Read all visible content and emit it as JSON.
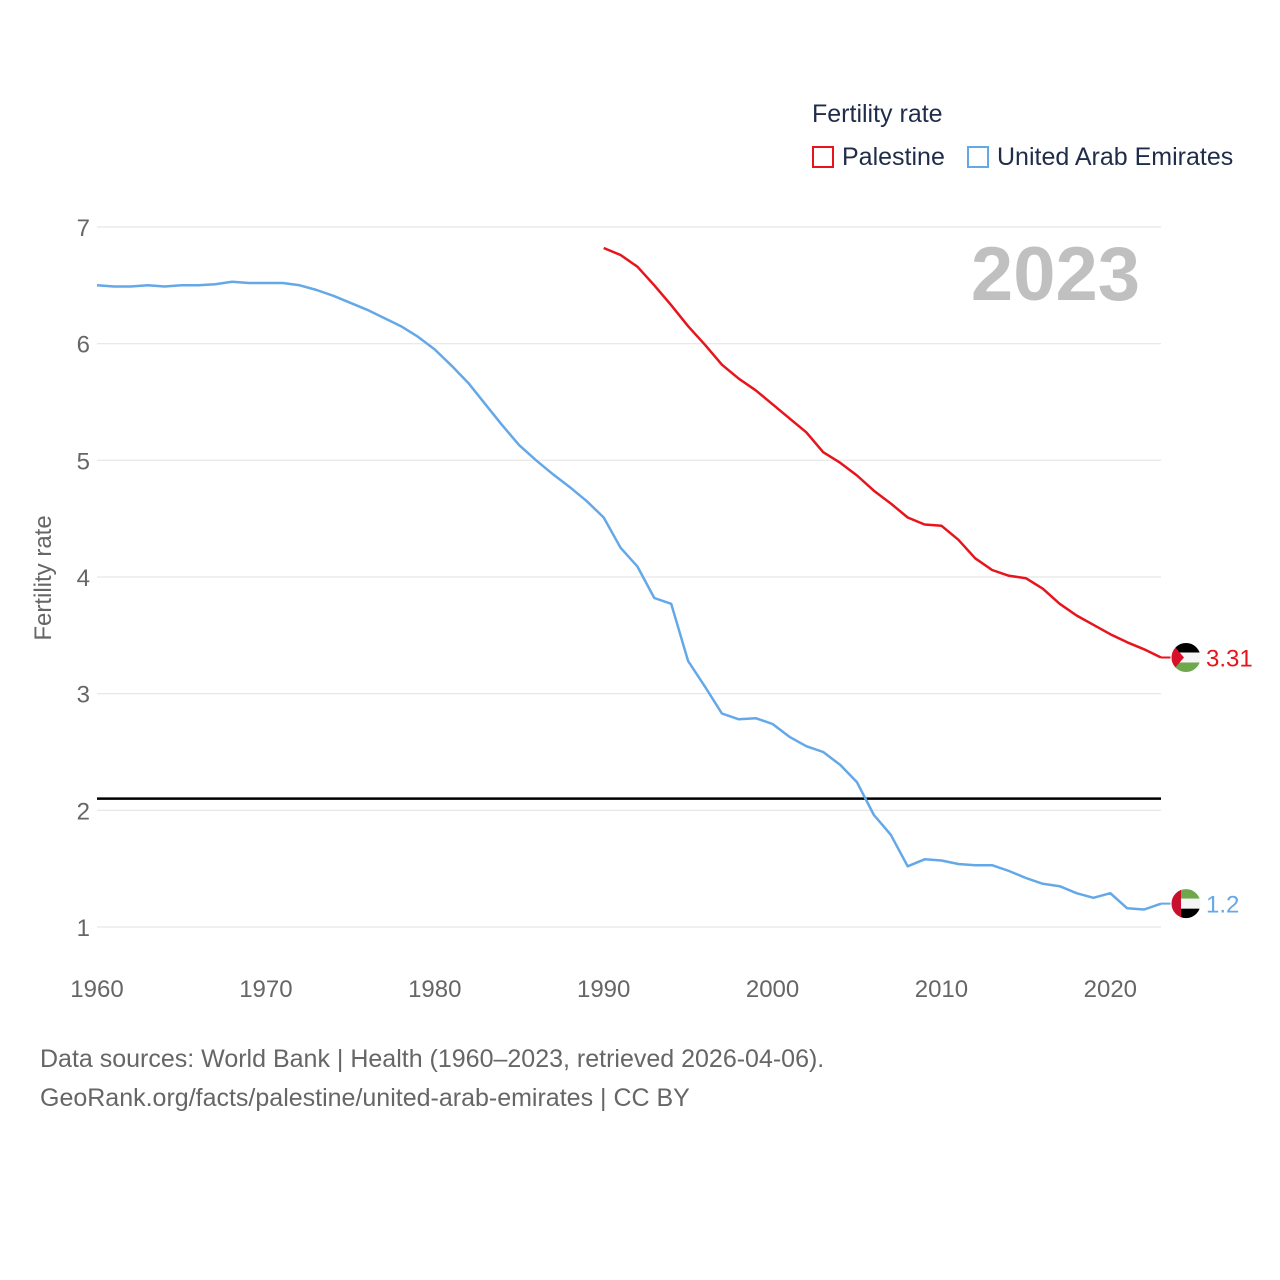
{
  "legend": {
    "title": "Fertility rate",
    "items": [
      {
        "label": "Palestine",
        "color": "#e8141c"
      },
      {
        "label": "United Arab Emirates",
        "color": "#64a8e8"
      }
    ]
  },
  "year_label": "2023",
  "source": {
    "line1": "Data sources: World Bank | Health (1960–2023, retrieved 2026-04-06).",
    "line2": "GeoRank.org/facts/palestine/united-arab-emirates | CC BY"
  },
  "chart_data": {
    "type": "line",
    "title": "Fertility rate",
    "xlabel": "",
    "ylabel": "Fertility rate",
    "xlim": [
      1960,
      2023
    ],
    "ylim": [
      0.85,
      7
    ],
    "x_ticks": [
      1960,
      1970,
      1980,
      1990,
      2000,
      2010,
      2020
    ],
    "y_ticks": [
      1,
      2,
      3,
      4,
      5,
      6,
      7
    ],
    "grid": true,
    "reference_line": {
      "y": 2.1,
      "color": "#000000"
    },
    "series": [
      {
        "name": "Palestine",
        "color": "#e8141c",
        "end_label": "3.31",
        "x": [
          1990,
          1991,
          1992,
          1993,
          1994,
          1995,
          1996,
          1997,
          1998,
          1999,
          2000,
          2001,
          2002,
          2003,
          2004,
          2005,
          2006,
          2007,
          2008,
          2009,
          2010,
          2011,
          2012,
          2013,
          2014,
          2015,
          2016,
          2017,
          2018,
          2019,
          2020,
          2021,
          2022,
          2023
        ],
        "values": [
          6.82,
          6.76,
          6.66,
          6.5,
          6.33,
          6.15,
          5.99,
          5.82,
          5.7,
          5.6,
          5.48,
          5.36,
          5.24,
          5.07,
          4.98,
          4.87,
          4.74,
          4.63,
          4.51,
          4.45,
          4.44,
          4.32,
          4.16,
          4.06,
          4.01,
          3.99,
          3.9,
          3.77,
          3.67,
          3.59,
          3.51,
          3.44,
          3.38,
          3.31
        ]
      },
      {
        "name": "United Arab Emirates",
        "color": "#64a8e8",
        "end_label": "1.2",
        "x": [
          1960,
          1961,
          1962,
          1963,
          1964,
          1965,
          1966,
          1967,
          1968,
          1969,
          1970,
          1971,
          1972,
          1973,
          1974,
          1975,
          1976,
          1977,
          1978,
          1979,
          1980,
          1981,
          1982,
          1983,
          1984,
          1985,
          1986,
          1987,
          1988,
          1989,
          1990,
          1991,
          1992,
          1993,
          1994,
          1995,
          1996,
          1997,
          1998,
          1999,
          2000,
          2001,
          2002,
          2003,
          2004,
          2005,
          2006,
          2007,
          2008,
          2009,
          2010,
          2011,
          2012,
          2013,
          2014,
          2015,
          2016,
          2017,
          2018,
          2019,
          2020,
          2021,
          2022,
          2023
        ],
        "values": [
          6.5,
          6.49,
          6.49,
          6.5,
          6.49,
          6.5,
          6.5,
          6.51,
          6.53,
          6.52,
          6.52,
          6.52,
          6.5,
          6.46,
          6.41,
          6.35,
          6.29,
          6.22,
          6.15,
          6.06,
          5.95,
          5.81,
          5.66,
          5.48,
          5.3,
          5.13,
          5.0,
          4.88,
          4.77,
          4.65,
          4.51,
          4.25,
          4.09,
          3.82,
          3.77,
          3.28,
          3.06,
          2.83,
          2.78,
          2.79,
          2.74,
          2.63,
          2.55,
          2.5,
          2.39,
          2.24,
          1.96,
          1.79,
          1.52,
          1.58,
          1.57,
          1.54,
          1.53,
          1.53,
          1.48,
          1.42,
          1.37,
          1.35,
          1.29,
          1.25,
          1.29,
          1.16,
          1.15,
          1.2
        ]
      }
    ]
  }
}
